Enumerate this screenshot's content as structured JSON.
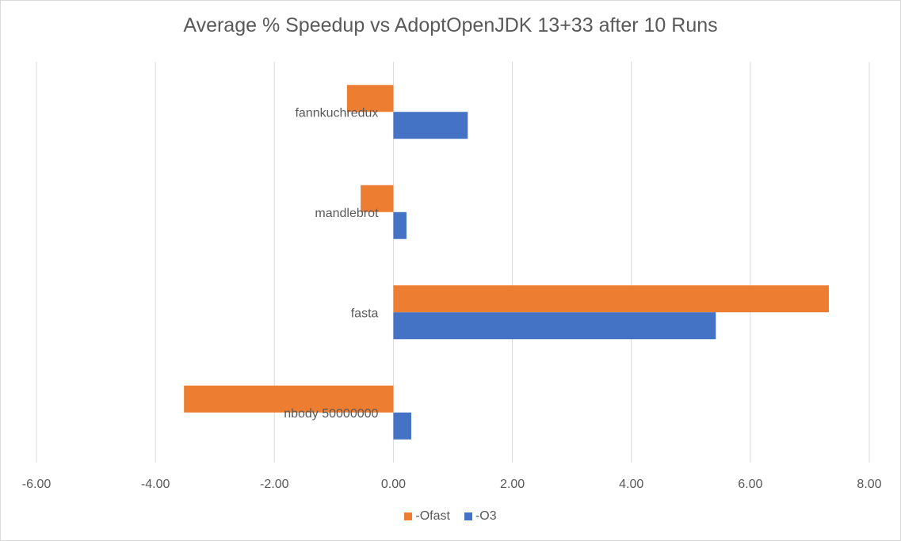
{
  "chart_data": {
    "type": "bar",
    "orientation": "horizontal",
    "title": "Average % Speedup  vs AdoptOpenJDK 13+33 after 10 Runs",
    "categories": [
      "fannkuchredux",
      "mandlebrot",
      "fasta",
      "nbody 50000000"
    ],
    "series": [
      {
        "name": "-Ofast",
        "color": "#ED7D31",
        "values": [
          -0.78,
          -0.55,
          7.32,
          -3.52
        ]
      },
      {
        "name": "-O3",
        "color": "#4472C4",
        "values": [
          1.25,
          0.22,
          5.42,
          0.3
        ]
      }
    ],
    "xlim": [
      -6,
      8
    ],
    "x_ticks": [
      "-6.00",
      "-4.00",
      "-2.00",
      "0.00",
      "2.00",
      "4.00",
      "6.00",
      "8.00"
    ],
    "grid": true,
    "legend_position": "bottom",
    "xlabel": "",
    "ylabel": ""
  }
}
